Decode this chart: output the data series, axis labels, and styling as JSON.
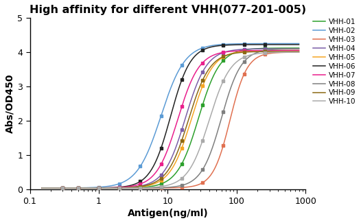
{
  "title": "High affinity for different VHH(077-201-005)",
  "xlabel": "Antigen(ng/ml)",
  "ylabel": "Abs/OD450",
  "xlim": [
    0.1,
    1000
  ],
  "ylim": [
    0,
    5
  ],
  "yticks": [
    0,
    1,
    2,
    3,
    4,
    5
  ],
  "series": [
    {
      "label": "VHH-01",
      "color": "#2ca02c",
      "ec50": 28,
      "hill": 2.8,
      "top": 4.12,
      "bottom": 0.05
    },
    {
      "label": "VHH-02",
      "color": "#5b9bd5",
      "ec50": 8,
      "hill": 2.5,
      "top": 4.25,
      "bottom": 0.05
    },
    {
      "label": "VHH-03",
      "color": "#e07050",
      "ec50": 80,
      "hill": 3.5,
      "top": 4.0,
      "bottom": 0.05
    },
    {
      "label": "VHH-04",
      "color": "#7b5ea7",
      "ec50": 18,
      "hill": 2.8,
      "top": 4.1,
      "bottom": 0.05
    },
    {
      "label": "VHH-05",
      "color": "#f5a623",
      "ec50": 22,
      "hill": 2.8,
      "top": 4.05,
      "bottom": 0.05
    },
    {
      "label": "VHH-06",
      "color": "#222222",
      "ec50": 11,
      "hill": 3.0,
      "top": 4.22,
      "bottom": 0.05
    },
    {
      "label": "VHH-07",
      "color": "#e91e8c",
      "ec50": 14,
      "hill": 2.8,
      "top": 4.05,
      "bottom": 0.05
    },
    {
      "label": "VHH-08",
      "color": "#7f7f7f",
      "ec50": 60,
      "hill": 3.0,
      "top": 4.1,
      "bottom": 0.05
    },
    {
      "label": "VHH-09",
      "color": "#8b6914",
      "ec50": 20,
      "hill": 2.8,
      "top": 4.02,
      "bottom": 0.05
    },
    {
      "label": "VHH-10",
      "color": "#aaaaaa",
      "ec50": 40,
      "hill": 2.8,
      "top": 4.0,
      "bottom": 0.05
    }
  ],
  "title_fontsize": 11.5,
  "axis_fontsize": 10,
  "tick_fontsize": 9,
  "legend_fontsize": 7.5
}
